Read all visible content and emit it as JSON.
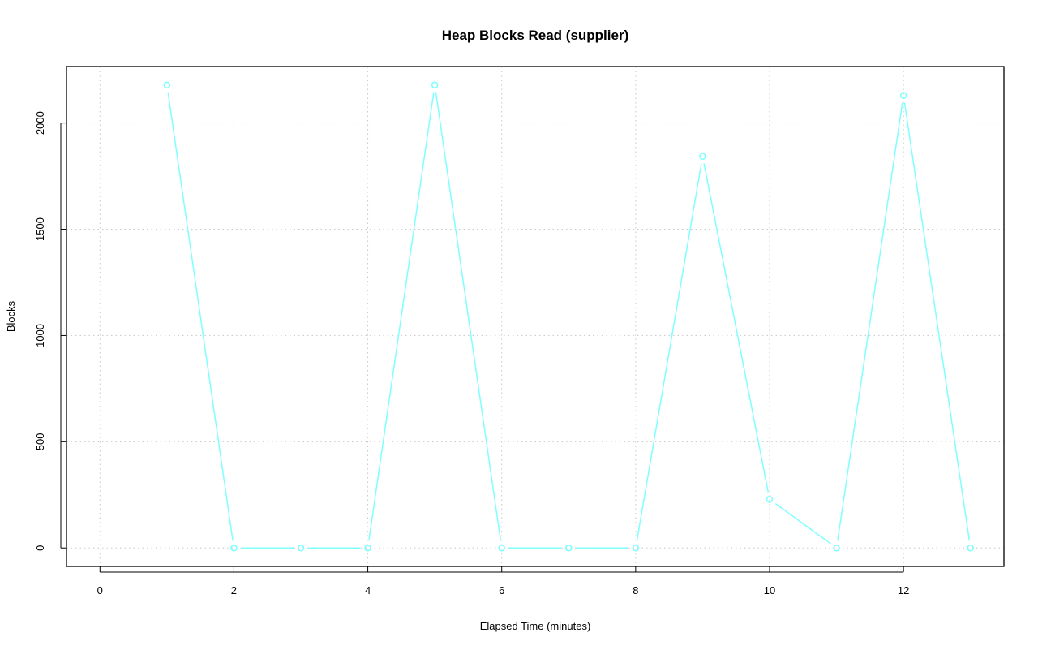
{
  "chart_data": {
    "type": "line",
    "title": "Heap Blocks Read (supplier)",
    "xlabel": "Elapsed Time (minutes)",
    "ylabel": "Blocks",
    "x": [
      1,
      2,
      3,
      4,
      5,
      6,
      7,
      8,
      9,
      10,
      11,
      12,
      13
    ],
    "series": [
      {
        "values": [
          2179,
          0,
          0,
          0,
          2179,
          0,
          0,
          0,
          1843,
          229,
          0,
          2130,
          0
        ],
        "color": "#7FFFFF"
      }
    ],
    "xlim": [
      -0.5,
      13.5
    ],
    "ylim": [
      -87,
      2266
    ],
    "xticks": [
      "0",
      "2",
      "4",
      "6",
      "8",
      "10",
      "12"
    ],
    "yticks": [
      "0",
      "500",
      "1000",
      "1500",
      "2000"
    ],
    "grid": true,
    "grid_style": "dotted",
    "markers": "open-circle"
  }
}
